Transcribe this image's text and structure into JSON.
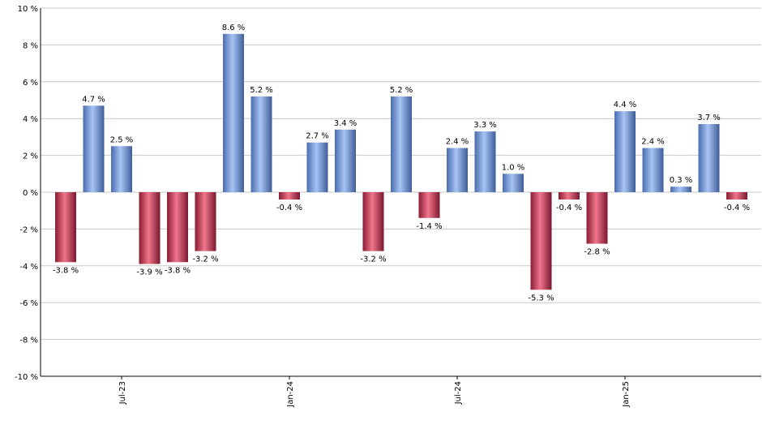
{
  "chart_data": {
    "type": "bar",
    "title": "",
    "xlabel": "",
    "ylabel": "",
    "ylim": [
      -10,
      10
    ],
    "y_ticks": [
      10,
      8,
      6,
      4,
      2,
      0,
      -2,
      -4,
      -6,
      -8,
      -10
    ],
    "y_tick_labels": [
      "10 %",
      "8 %",
      "6 %",
      "4 %",
      "2 %",
      "0 %",
      "-2 %",
      "-4 %",
      "-6 %",
      "-8 %",
      "-10 %"
    ],
    "x_tick_labels": [
      {
        "label": "Jul-23",
        "index": 2
      },
      {
        "label": "Jan-24",
        "index": 8
      },
      {
        "label": "Jul-24",
        "index": 14
      },
      {
        "label": "Jan-25",
        "index": 20
      }
    ],
    "values": [
      -3.8,
      4.7,
      2.5,
      -3.9,
      -3.8,
      -3.2,
      8.6,
      5.2,
      -0.4,
      2.7,
      3.4,
      -3.2,
      5.2,
      -1.4,
      2.4,
      3.3,
      1.0,
      -5.3,
      -0.4,
      -2.8,
      4.4,
      2.4,
      0.3,
      3.7,
      -0.4
    ],
    "value_labels": [
      "-3.8 %",
      "4.7 %",
      "2.5 %",
      "-3.9 %",
      "-3.8 %",
      "-3.2 %",
      "8.6 %",
      "5.2 %",
      "-0.4 %",
      "2.7 %",
      "3.4 %",
      "-3.2 %",
      "5.2 %",
      "-1.4 %",
      "2.4 %",
      "3.3 %",
      "1.0 %",
      "-5.3 %",
      "-0.4 %",
      "-2.8 %",
      "4.4 %",
      "2.4 %",
      "0.3 %",
      "3.7 %",
      "-0.4 %"
    ],
    "grid": true,
    "legend": "none",
    "colors": {
      "positive_light": "#a8c4f4",
      "positive_dark": "#4a6cae",
      "negative_light": "#f0758a",
      "negative_dark": "#8a1c34"
    }
  }
}
